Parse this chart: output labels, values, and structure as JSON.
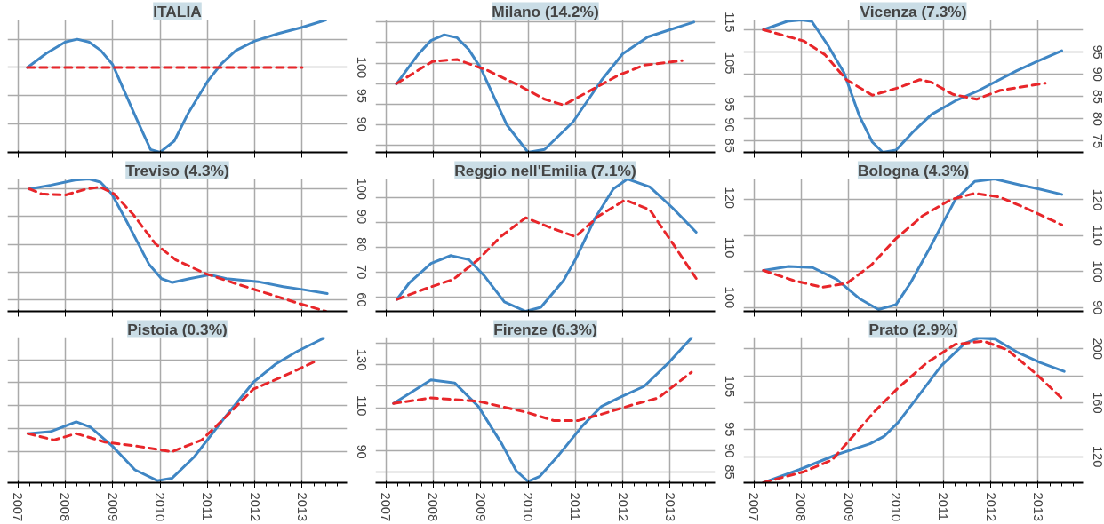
{
  "chart_data": [
    {
      "type": "line",
      "title": "ITALIA",
      "xlim": [
        2006.78,
        2013.95
      ],
      "xticks": [
        2007,
        2008,
        2009,
        2010,
        2011,
        2012,
        2013
      ],
      "ylim": [
        85,
        108.4
      ],
      "yticks": [
        90,
        95,
        100,
        {
          "value": 105,
          "label": null
        }
      ],
      "tick_labels": "y",
      "grid": true,
      "series": [
        {
          "color": "#3f86c4",
          "line_style": "solid",
          "x": [
            2007.2,
            2007.6,
            2008.0,
            2008.25,
            2008.5,
            2008.75,
            2009.0,
            2009.5,
            2009.8,
            2010.0,
            2010.3,
            2010.6,
            2011.0,
            2011.3,
            2011.6,
            2012.0,
            2012.5,
            2013.0,
            2013.5
          ],
          "values": [
            100,
            102.5,
            104.5,
            105,
            104.5,
            103,
            100.5,
            91,
            85.5,
            85,
            87,
            92,
            97.5,
            100.7,
            103,
            104.7,
            106,
            107.1,
            108.4
          ]
        },
        {
          "color": "#e8262a",
          "line_style": "dashed",
          "x": [
            2007.2,
            2008.0,
            2009.0,
            2010.0,
            2011.0,
            2012.0,
            2013.0
          ],
          "values": [
            100,
            100,
            100,
            100,
            100,
            100,
            100
          ]
        }
      ]
    },
    {
      "type": "line",
      "title": "Milano (14.2%)",
      "xlim": [
        2006.78,
        2013.95
      ],
      "xticks": [
        2007,
        2008,
        2009,
        2010,
        2011,
        2012,
        2013
      ],
      "ylim": [
        83.3,
        115.5
      ],
      "yticks": [
        85,
        90,
        95,
        {
          "value": 100,
          "label": null
        },
        105,
        {
          "value": 110,
          "label": null
        },
        115
      ],
      "tick_labels": "y",
      "grid": true,
      "series": [
        {
          "color": "#3f86c4",
          "line_style": "solid",
          "x": [
            2007.22,
            2007.67,
            2007.95,
            2008.23,
            2008.5,
            2008.75,
            2009.0,
            2009.55,
            2010.0,
            2010.35,
            2010.95,
            2011.55,
            2012.0,
            2012.53,
            2013.5
          ],
          "values": [
            99.9,
            107,
            110.5,
            111.9,
            111.2,
            108.3,
            103.8,
            90,
            83.3,
            84,
            90.7,
            100.8,
            107.3,
            111.4,
            115
          ]
        },
        {
          "color": "#e8262a",
          "line_style": "dashed",
          "x": [
            2007.22,
            2007.98,
            2008.5,
            2009.15,
            2009.8,
            2010.35,
            2010.75,
            2011.25,
            2011.9,
            2012.45,
            2013.25
          ],
          "values": [
            100,
            105.4,
            105.9,
            103.2,
            99.6,
            96.2,
            94.8,
            97.9,
            102,
            104.5,
            105.6
          ]
        }
      ]
    },
    {
      "type": "line",
      "title": "Vicenza (7.3%)",
      "xlim": [
        2006.78,
        2013.95
      ],
      "xticks": [
        2007,
        2008,
        2009,
        2010,
        2011,
        2012,
        2013
      ],
      "ylim": [
        72.5,
        102.2
      ],
      "yticks": [
        75,
        80,
        85,
        90,
        95,
        {
          "value": 100,
          "label": null
        }
      ],
      "tick_labels": "y",
      "grid": true,
      "series": [
        {
          "color": "#3f86c4",
          "line_style": "solid",
          "x": [
            2007.2,
            2007.7,
            2008.0,
            2008.22,
            2008.55,
            2008.9,
            2009.22,
            2009.5,
            2009.72,
            2010.0,
            2010.35,
            2010.75,
            2011.28,
            2011.75,
            2012.55,
            2013.0,
            2013.5
          ],
          "values": [
            100,
            101.9,
            102.2,
            101.9,
            96.7,
            90.4,
            80.8,
            74.8,
            72.5,
            73,
            77,
            81,
            84.2,
            86.4,
            90.8,
            93,
            95.3
          ]
        },
        {
          "color": "#e8262a",
          "line_style": "dashed",
          "x": [
            2007.2,
            2008.05,
            2008.5,
            2008.95,
            2009.5,
            2010.05,
            2010.5,
            2010.75,
            2011.2,
            2011.7,
            2012.2,
            2013.15
          ],
          "values": [
            100,
            97.5,
            94.4,
            88.8,
            85.3,
            87,
            88.8,
            88.2,
            85.5,
            84.4,
            86.4,
            88
          ]
        }
      ]
    },
    {
      "type": "line",
      "title": "Treviso (4.3%)",
      "xlim": [
        2006.78,
        2013.95
      ],
      "xticks": [
        2007,
        2008,
        2009,
        2010,
        2011,
        2012,
        2013
      ],
      "ylim": [
        55.8,
        103.6
      ],
      "yticks": [
        60,
        70,
        80,
        90,
        100
      ],
      "tick_labels": "y",
      "grid": true,
      "series": [
        {
          "color": "#3f86c4",
          "line_style": "solid",
          "x": [
            2007.24,
            2007.7,
            2008.2,
            2008.5,
            2008.74,
            2008.98,
            2009.3,
            2009.77,
            2010.03,
            2010.26,
            2010.62,
            2011.05,
            2011.4,
            2012.07,
            2012.6,
            2013.0,
            2013.53
          ],
          "values": [
            100,
            101.4,
            103.2,
            103.6,
            102.5,
            98.2,
            88.1,
            72.7,
            67.6,
            66.2,
            67.6,
            69,
            67.6,
            66.5,
            64.7,
            63.7,
            62.2
          ]
        },
        {
          "color": "#e8262a",
          "line_style": "dashed",
          "x": [
            2007.24,
            2007.5,
            2008.0,
            2008.45,
            2008.74,
            2009.03,
            2009.44,
            2009.9,
            2010.33,
            2010.96,
            2011.6,
            2012.27,
            2012.94,
            2013.5
          ],
          "values": [
            100,
            98.2,
            97.8,
            100,
            100.7,
            98.2,
            90.6,
            80.2,
            74.4,
            69.4,
            65.8,
            62.2,
            58.6,
            55.8
          ]
        }
      ]
    },
    {
      "type": "line",
      "title": "Reggio nell'Emilia (7.1%)",
      "xlim": [
        2006.78,
        2013.95
      ],
      "xticks": [
        2007,
        2008,
        2009,
        2010,
        2011,
        2012,
        2013
      ],
      "ylim": [
        97.2,
        123.8
      ],
      "yticks": [
        100,
        {
          "value": 105,
          "label": null
        },
        110,
        {
          "value": 115,
          "label": null
        },
        120
      ],
      "tick_labels": "y",
      "grid": true,
      "series": [
        {
          "color": "#3f86c4",
          "line_style": "solid",
          "x": [
            2007.23,
            2007.5,
            2007.95,
            2008.37,
            2008.75,
            2009.07,
            2009.5,
            2009.95,
            2010.27,
            2010.75,
            2011.0,
            2011.42,
            2011.8,
            2012.1,
            2012.57,
            2013.05,
            2013.55
          ],
          "values": [
            99.6,
            103,
            106.8,
            108.4,
            107.6,
            104.4,
            99.1,
            97.2,
            98,
            103.4,
            107.6,
            116,
            121.8,
            123.8,
            122.2,
            118,
            113.1
          ]
        },
        {
          "color": "#e8262a",
          "line_style": "dashed",
          "x": [
            2007.23,
            2007.85,
            2008.42,
            2008.95,
            2009.42,
            2009.95,
            2010.53,
            2011.0,
            2011.5,
            2012.05,
            2012.57,
            2013.1,
            2013.55
          ],
          "values": [
            99.6,
            101.8,
            103.6,
            107.6,
            112.2,
            116,
            113.8,
            112.2,
            116.4,
            119.6,
            117.6,
            110.2,
            103.8
          ]
        }
      ]
    },
    {
      "type": "line",
      "title": "Bologna (4.3%)",
      "xlim": [
        2006.78,
        2013.95
      ],
      "xticks": [
        2007,
        2008,
        2009,
        2010,
        2011,
        2012,
        2013
      ],
      "ylim": [
        88.9,
        125.8
      ],
      "yticks": [
        90,
        100,
        110,
        120
      ],
      "tick_labels": "y",
      "grid": true,
      "series": [
        {
          "color": "#3f86c4",
          "line_style": "solid",
          "x": [
            2007.2,
            2007.73,
            2008.24,
            2008.75,
            2009.22,
            2009.63,
            2010.0,
            2010.3,
            2010.73,
            2011.25,
            2011.66,
            2012.08,
            2012.6,
            2013.02,
            2013.5
          ],
          "values": [
            100.3,
            101.4,
            101.1,
            97.8,
            92.5,
            89.4,
            90.8,
            96.7,
            107,
            120,
            125.1,
            125.8,
            124.2,
            123,
            121.5
          ]
        },
        {
          "color": "#e8262a",
          "line_style": "dashed",
          "x": [
            2007.2,
            2007.83,
            2008.45,
            2008.96,
            2009.47,
            2010.0,
            2010.57,
            2011.15,
            2011.66,
            2012.18,
            2012.72,
            2013.5
          ],
          "values": [
            100.3,
            97.5,
            95.6,
            96.7,
            101.7,
            109.2,
            115.6,
            120,
            121.8,
            120.8,
            117.8,
            113
          ]
        }
      ]
    },
    {
      "type": "line",
      "title": "Pistoia (0.3%)",
      "xlim": [
        2006.78,
        2013.95
      ],
      "xticks": [
        2007,
        2008,
        2009,
        2010,
        2011,
        2012,
        2013
      ],
      "ylim": [
        76.5,
        139.5
      ],
      "yticks": [
        90,
        {
          "value": 100,
          "label": null
        },
        110,
        {
          "value": 120,
          "label": null
        },
        130
      ],
      "grid": true,
      "series": [
        {
          "color": "#3f86c4",
          "line_style": "solid",
          "x": [
            2007.21,
            2007.68,
            2008.23,
            2008.53,
            2009.0,
            2009.47,
            2009.94,
            2010.25,
            2010.72,
            2011.34,
            2011.97,
            2012.44,
            2012.9,
            2013.45
          ],
          "values": [
            97.9,
            98.7,
            103,
            100.7,
            92.3,
            82.1,
            77.4,
            78.4,
            87.7,
            104.2,
            120.2,
            128.1,
            133.7,
            139.3
          ]
        },
        {
          "color": "#e8262a",
          "line_style": "dashed",
          "x": [
            2007.21,
            2007.76,
            2008.23,
            2008.84,
            2009.55,
            2010.25,
            2010.88,
            2011.34,
            2011.97,
            2012.59,
            2013.3
          ],
          "values": [
            97.9,
            95.1,
            97.9,
            94.2,
            92.3,
            90,
            95.1,
            104.2,
            117.2,
            122.7,
            129.5
          ]
        }
      ]
    },
    {
      "type": "line",
      "title": "Firenze (6.3%)",
      "xlim": [
        2006.78,
        2013.95
      ],
      "xticks": [
        2007,
        2008,
        2009,
        2010,
        2011,
        2012,
        2013
      ],
      "ylim": [
        82.5,
        116.3
      ],
      "yticks": [
        85,
        90,
        95,
        {
          "value": 100,
          "label": null
        },
        105,
        {
          "value": 110,
          "label": null
        },
        {
          "value": 115,
          "label": null
        }
      ],
      "grid": true,
      "series": [
        {
          "color": "#3f86c4",
          "line_style": "solid",
          "x": [
            2007.16,
            2007.95,
            2008.45,
            2008.95,
            2009.45,
            2009.75,
            2010.0,
            2010.25,
            2010.65,
            2011.15,
            2011.55,
            2011.95,
            2012.45,
            2012.95,
            2013.45
          ],
          "values": [
            101,
            106.5,
            105.8,
            100.3,
            91.5,
            85.3,
            82.8,
            84,
            89,
            95.8,
            100.3,
            102.5,
            105,
            110.3,
            116.3
          ]
        },
        {
          "color": "#e8262a",
          "line_style": "dashed",
          "x": [
            2007.16,
            2007.95,
            2008.95,
            2009.95,
            2010.55,
            2011.05,
            2011.55,
            2012.15,
            2012.75,
            2013.45
          ],
          "values": [
            101,
            102.3,
            101.5,
            99,
            97,
            97,
            98.5,
            100.5,
            102.3,
            108.3
          ]
        }
      ]
    },
    {
      "type": "line",
      "title": "Prato (2.9%)",
      "xlim": [
        2006.78,
        2013.95
      ],
      "xticks": [
        2007,
        2008,
        2009,
        2010,
        2011,
        2012,
        2013
      ],
      "ylim": [
        100.7,
        208
      ],
      "yticks": [
        120,
        {
          "value": 140,
          "label": null
        },
        160,
        {
          "value": 180,
          "label": null
        },
        200
      ],
      "grid": true,
      "series": [
        {
          "color": "#3f86c4",
          "line_style": "solid",
          "x": [
            2007.2,
            2007.96,
            2008.75,
            2009.45,
            2009.75,
            2010.05,
            2010.45,
            2010.95,
            2011.45,
            2011.75,
            2012.09,
            2012.55,
            2013.05,
            2013.55
          ],
          "values": [
            100.8,
            110.4,
            121.6,
            129.6,
            135.2,
            145.6,
            164,
            187.2,
            204,
            208,
            207.2,
            197.6,
            189.6,
            183.2
          ]
        },
        {
          "color": "#e8262a",
          "line_style": "dashed",
          "x": [
            2007.2,
            2008.05,
            2008.65,
            2009.05,
            2009.55,
            2010.05,
            2010.65,
            2011.25,
            2011.85,
            2012.35,
            2012.95,
            2013.55
          ],
          "values": [
            100.8,
            108.8,
            117.6,
            133.6,
            153.6,
            171.2,
            189.6,
            203.2,
            205.6,
            199.2,
            181.6,
            161.6
          ]
        }
      ]
    }
  ]
}
